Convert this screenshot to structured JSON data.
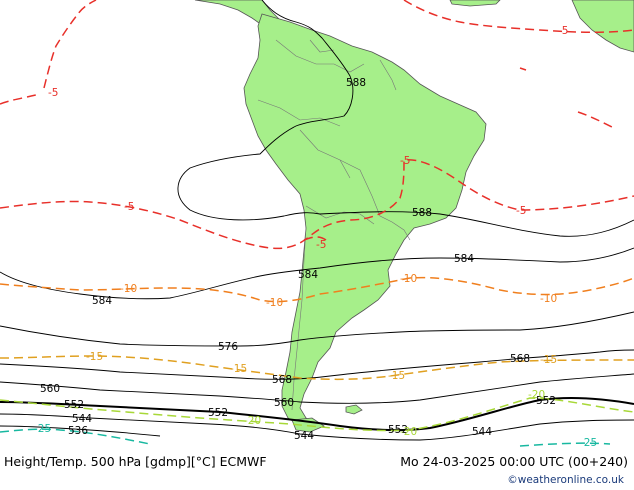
{
  "map": {
    "colors": {
      "ocean": "#ffffff",
      "land": "#a6ef8a",
      "coast": "#555555",
      "height_contour": "#000000",
      "temp_minus5": "#e8302a",
      "temp_minus10": "#f07f1e",
      "temp_minus15": "#e0a020",
      "temp_minus20": "#a8d838",
      "temp_minus25": "#18b8a0"
    },
    "height_labels": [
      "588",
      "588",
      "584",
      "584",
      "584",
      "576",
      "568",
      "568",
      "560",
      "560",
      "552",
      "552",
      "552",
      "552",
      "544",
      "544",
      "544",
      "536"
    ],
    "temp_labels": {
      "minus5": [
        "-5",
        "-5",
        "-5",
        "-5",
        "-5",
        "-5"
      ],
      "minus10": [
        "-10",
        "-10",
        "-10",
        "-10"
      ],
      "minus15": [
        "-15",
        "-15",
        "-15",
        "-15"
      ],
      "minus20": [
        "-20",
        "-20",
        "-20"
      ],
      "minus25": [
        "-25",
        "-25"
      ]
    }
  },
  "footer": {
    "title": "Height/Temp. 500 hPa [gdmp][°C] ECMWF",
    "valid_time": "Mo 24-03-2025 00:00 UTC (00+240)",
    "credit": "©weatheronline.co.uk"
  }
}
